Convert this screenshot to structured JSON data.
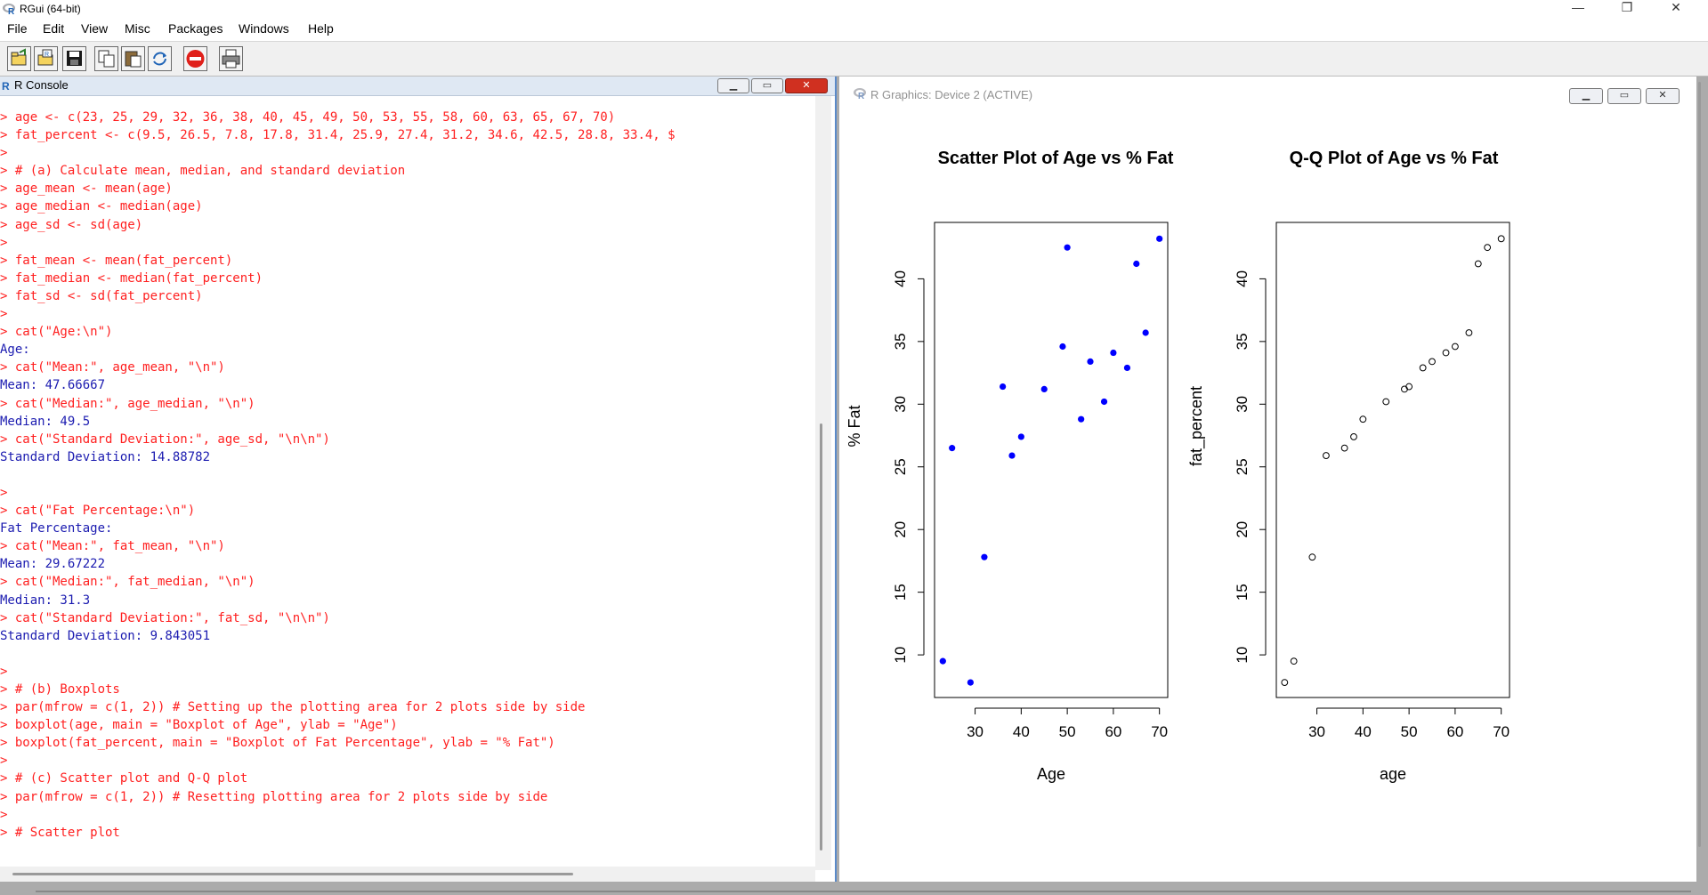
{
  "window": {
    "title": "RGui (64-bit)",
    "minimize_glyph": "—",
    "maximize_glyph": "❐",
    "close_glyph": "✕"
  },
  "menu": {
    "items": [
      "File",
      "Edit",
      "View",
      "Misc",
      "Packages",
      "Windows",
      "Help"
    ]
  },
  "toolbar": {
    "buttons": [
      {
        "icon": "open-script-icon",
        "tooltip": ""
      },
      {
        "icon": "load-workspace-icon",
        "tooltip": ""
      },
      {
        "icon": "save-icon",
        "tooltip": ""
      },
      {
        "icon": "copy-icon",
        "tooltip": ""
      },
      {
        "icon": "paste-icon",
        "tooltip": ""
      },
      {
        "icon": "copy-paste-icon",
        "tooltip": ""
      },
      {
        "icon": "stop-icon",
        "tooltip": ""
      },
      {
        "icon": "print-icon",
        "tooltip": ""
      }
    ],
    "stop_color": "#e0201a"
  },
  "console": {
    "title": "R Console",
    "lines": [
      {
        "type": "cmd",
        "text": "> age <- c(23, 25, 29, 32, 36, 38, 40, 45, 49, 50, 53, 55, 58, 60, 63, 65, 67, 70)"
      },
      {
        "type": "cmd",
        "text": "> fat_percent <- c(9.5, 26.5, 7.8, 17.8, 31.4, 25.9, 27.4, 31.2, 34.6, 42.5, 28.8, 33.4, $"
      },
      {
        "type": "cmd",
        "text": ">"
      },
      {
        "type": "cmd",
        "text": "> # (a) Calculate mean, median, and standard deviation"
      },
      {
        "type": "cmd",
        "text": "> age_mean <- mean(age)"
      },
      {
        "type": "cmd",
        "text": "> age_median <- median(age)"
      },
      {
        "type": "cmd",
        "text": "> age_sd <- sd(age)"
      },
      {
        "type": "cmd",
        "text": ">"
      },
      {
        "type": "cmd",
        "text": "> fat_mean <- mean(fat_percent)"
      },
      {
        "type": "cmd",
        "text": "> fat_median <- median(fat_percent)"
      },
      {
        "type": "cmd",
        "text": "> fat_sd <- sd(fat_percent)"
      },
      {
        "type": "cmd",
        "text": ">"
      },
      {
        "type": "cmd",
        "text": "> cat(\"Age:\\n\")"
      },
      {
        "type": "out",
        "text": "Age:"
      },
      {
        "type": "cmd",
        "text": "> cat(\"Mean:\", age_mean, \"\\n\")"
      },
      {
        "type": "out",
        "text": "Mean: 47.66667"
      },
      {
        "type": "cmd",
        "text": "> cat(\"Median:\", age_median, \"\\n\")"
      },
      {
        "type": "out",
        "text": "Median: 49.5"
      },
      {
        "type": "cmd",
        "text": "> cat(\"Standard Deviation:\", age_sd, \"\\n\\n\")"
      },
      {
        "type": "out",
        "text": "Standard Deviation: 14.88782"
      },
      {
        "type": "out",
        "text": ""
      },
      {
        "type": "cmd",
        "text": ">"
      },
      {
        "type": "cmd",
        "text": "> cat(\"Fat Percentage:\\n\")"
      },
      {
        "type": "out",
        "text": "Fat Percentage:"
      },
      {
        "type": "cmd",
        "text": "> cat(\"Mean:\", fat_mean, \"\\n\")"
      },
      {
        "type": "out",
        "text": "Mean: 29.67222"
      },
      {
        "type": "cmd",
        "text": "> cat(\"Median:\", fat_median, \"\\n\")"
      },
      {
        "type": "out",
        "text": "Median: 31.3"
      },
      {
        "type": "cmd",
        "text": "> cat(\"Standard Deviation:\", fat_sd, \"\\n\\n\")"
      },
      {
        "type": "out",
        "text": "Standard Deviation: 9.843051"
      },
      {
        "type": "out",
        "text": ""
      },
      {
        "type": "cmd",
        "text": ">"
      },
      {
        "type": "cmd",
        "text": "> # (b) Boxplots"
      },
      {
        "type": "cmd",
        "text": "> par(mfrow = c(1, 2)) # Setting up the plotting area for 2 plots side by side"
      },
      {
        "type": "cmd",
        "text": "> boxplot(age, main = \"Boxplot of Age\", ylab = \"Age\")"
      },
      {
        "type": "cmd",
        "text": "> boxplot(fat_percent, main = \"Boxplot of Fat Percentage\", ylab = \"% Fat\")"
      },
      {
        "type": "cmd",
        "text": ">"
      },
      {
        "type": "cmd",
        "text": "> # (c) Scatter plot and Q-Q plot"
      },
      {
        "type": "cmd",
        "text": "> par(mfrow = c(1, 2)) # Resetting plotting area for 2 plots side by side"
      },
      {
        "type": "cmd",
        "text": ">"
      },
      {
        "type": "cmd",
        "text": "> # Scatter plot"
      }
    ],
    "cmd_color": "#ff1f1f",
    "out_color": "#1b1bb0"
  },
  "graphics": {
    "title": "R Graphics: Device 2 (ACTIVE)"
  },
  "chart_data": [
    {
      "type": "scatter",
      "title": "Scatter Plot of Age vs % Fat",
      "xlabel": "Age",
      "ylabel": "% Fat",
      "x_ticks": [
        30,
        40,
        50,
        60,
        70
      ],
      "y_ticks": [
        10,
        15,
        20,
        25,
        30,
        35,
        40
      ],
      "xlim": [
        21.2,
        71.8
      ],
      "ylim": [
        6.6,
        44.5
      ],
      "marker": "filled-circle",
      "color": "#0000ff",
      "series": [
        {
          "x": [
            23,
            25,
            29,
            32,
            36,
            38,
            40,
            45,
            49,
            50,
            53,
            55,
            58,
            60,
            63,
            65,
            67,
            70
          ],
          "y": [
            9.5,
            26.5,
            7.8,
            17.8,
            31.4,
            25.9,
            27.4,
            31.2,
            34.6,
            42.5,
            28.8,
            33.4,
            30.2,
            34.1,
            32.9,
            41.2,
            35.7,
            43.2
          ]
        }
      ]
    },
    {
      "type": "scatter",
      "title": "Q-Q Plot of Age vs % Fat",
      "xlabel": "age",
      "ylabel": "fat_percent",
      "x_ticks": [
        30,
        40,
        50,
        60,
        70
      ],
      "y_ticks": [
        10,
        15,
        20,
        25,
        30,
        35,
        40
      ],
      "xlim": [
        21.2,
        71.8
      ],
      "ylim": [
        6.6,
        44.5
      ],
      "marker": "open-circle",
      "color": "#000000",
      "series": [
        {
          "x": [
            23,
            25,
            29,
            32,
            36,
            38,
            40,
            45,
            49,
            50,
            53,
            55,
            58,
            60,
            63,
            65,
            67,
            70
          ],
          "y": [
            7.8,
            9.5,
            17.8,
            25.9,
            26.5,
            27.4,
            28.8,
            30.2,
            31.2,
            31.4,
            32.9,
            33.4,
            34.1,
            34.6,
            35.7,
            41.2,
            42.5,
            43.2
          ]
        }
      ]
    }
  ]
}
